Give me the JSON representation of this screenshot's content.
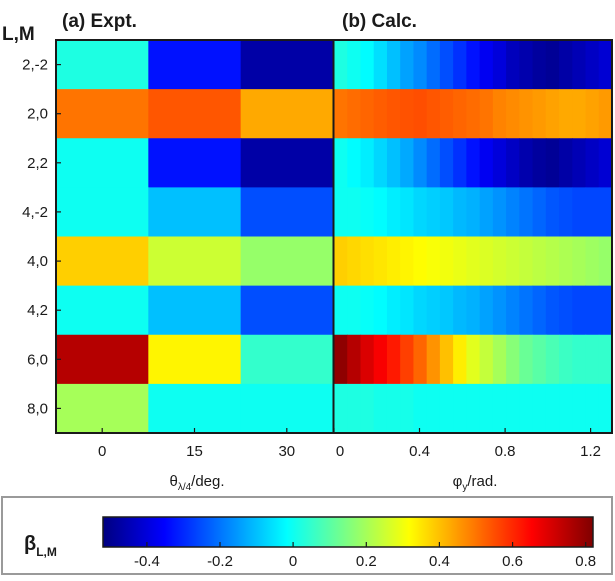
{
  "chart_data": {
    "type": "heatmap",
    "row_header": "L,M",
    "rows": [
      "2,-2",
      "2,0",
      "2,2",
      "4,-2",
      "4,0",
      "4,2",
      "6,0",
      "8,0"
    ],
    "colorbar": {
      "label_main": "β",
      "label_sub": "L,M",
      "range": [
        -0.52,
        0.82
      ],
      "ticks": [
        "-0.4",
        "-0.2",
        "0",
        "0.2",
        "0.4",
        "0.6",
        "0.8"
      ],
      "tick_values": [
        -0.4,
        -0.2,
        0,
        0.2,
        0.4,
        0.6,
        0.8
      ],
      "colormap": "jet"
    },
    "panels": [
      {
        "title": "(a) Expt.",
        "xlabel_main": "θ",
        "xlabel_sub": "λ/4",
        "xlabel_tail": "/deg.",
        "x": [
          0,
          15,
          30
        ],
        "xticks": [
          "0",
          "15",
          "30"
        ],
        "values": [
          [
            0.02,
            -0.33,
            -0.47
          ],
          [
            0.5,
            0.54,
            0.43
          ],
          [
            0.0,
            -0.33,
            -0.47
          ],
          [
            0.0,
            -0.1,
            -0.25
          ],
          [
            0.38,
            0.25,
            0.18
          ],
          [
            0.0,
            -0.1,
            -0.25
          ],
          [
            0.75,
            0.33,
            0.05
          ],
          [
            0.2,
            0.0,
            0.0
          ]
        ]
      },
      {
        "title": "(b) Calc.",
        "xlabel_main": "φ",
        "xlabel_sub": "y",
        "xlabel_tail": "/rad.",
        "x_range": [
          0,
          1.3
        ],
        "xticks": [
          "0",
          "0.4",
          "0.8",
          "1.2"
        ],
        "xtick_values": [
          0,
          0.4,
          0.8,
          1.2
        ],
        "values": [
          [
            0.02,
            0.0,
            -0.02,
            -0.06,
            -0.1,
            -0.14,
            -0.17,
            -0.21,
            -0.25,
            -0.29,
            -0.33,
            -0.37,
            -0.4,
            -0.44,
            -0.46,
            -0.48,
            -0.49,
            -0.47,
            -0.45,
            -0.43,
            -0.41
          ],
          [
            0.5,
            0.51,
            0.52,
            0.53,
            0.54,
            0.545,
            0.55,
            0.54,
            0.53,
            0.52,
            0.51,
            0.5,
            0.48,
            0.47,
            0.46,
            0.45,
            0.44,
            0.43,
            0.43,
            0.44,
            0.45
          ],
          [
            0.0,
            -0.02,
            -0.04,
            -0.07,
            -0.1,
            -0.13,
            -0.17,
            -0.21,
            -0.25,
            -0.29,
            -0.33,
            -0.37,
            -0.4,
            -0.43,
            -0.46,
            -0.48,
            -0.49,
            -0.47,
            -0.45,
            -0.43,
            -0.41
          ],
          [
            0.0,
            0.0,
            -0.01,
            -0.02,
            -0.04,
            -0.05,
            -0.07,
            -0.08,
            -0.09,
            -0.11,
            -0.12,
            -0.14,
            -0.16,
            -0.18,
            -0.2,
            -0.22,
            -0.24,
            -0.25,
            -0.26,
            -0.26,
            -0.26
          ],
          [
            0.38,
            0.37,
            0.36,
            0.35,
            0.34,
            0.33,
            0.32,
            0.31,
            0.3,
            0.29,
            0.28,
            0.27,
            0.26,
            0.25,
            0.24,
            0.23,
            0.22,
            0.21,
            0.2,
            0.19,
            0.18
          ],
          [
            0.0,
            0.0,
            -0.01,
            -0.02,
            -0.04,
            -0.05,
            -0.07,
            -0.08,
            -0.09,
            -0.11,
            -0.12,
            -0.14,
            -0.16,
            -0.18,
            -0.2,
            -0.22,
            -0.24,
            -0.25,
            -0.26,
            -0.26,
            -0.26
          ],
          [
            0.8,
            0.75,
            0.7,
            0.66,
            0.62,
            0.57,
            0.52,
            0.46,
            0.4,
            0.34,
            0.28,
            0.24,
            0.2,
            0.16,
            0.12,
            0.1,
            0.08,
            0.06,
            0.05,
            0.05,
            0.05
          ],
          [
            0.02,
            0.02,
            0.02,
            0.01,
            0.01,
            0.01,
            0.0,
            0.0,
            0.0,
            0.0,
            0.0,
            0.0,
            0.0,
            0.0,
            0.0,
            0.0,
            0.0,
            0.0,
            0.0,
            0.0,
            0.0
          ]
        ]
      }
    ]
  }
}
